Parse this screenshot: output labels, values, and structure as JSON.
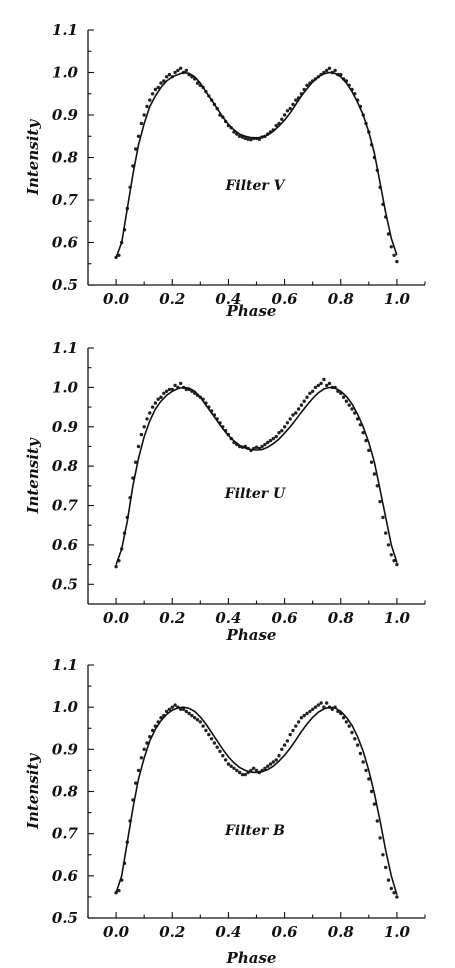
{
  "chart_data": [
    {
      "type": "scatter",
      "title": "",
      "panel_label": "Filter V",
      "xlabel": "Phase",
      "ylabel": "Intensity",
      "xlim": [
        -0.1,
        1.1
      ],
      "ylim": [
        0.5,
        1.1
      ],
      "x_ticks": [
        "0.0",
        "0.2",
        "0.4",
        "0.6",
        "0.8",
        "1.0"
      ],
      "y_ticks": [
        "0.5",
        "0.6",
        "0.7",
        "0.8",
        "0.9",
        "1.0",
        "1.1"
      ],
      "series": [
        {
          "kind": "scatter",
          "x": [
            0.0,
            0.01,
            0.02,
            0.03,
            0.04,
            0.05,
            0.06,
            0.07,
            0.08,
            0.09,
            0.1,
            0.11,
            0.12,
            0.13,
            0.14,
            0.15,
            0.16,
            0.17,
            0.18,
            0.19,
            0.2,
            0.21,
            0.22,
            0.23,
            0.24,
            0.25,
            0.26,
            0.27,
            0.28,
            0.29,
            0.3,
            0.31,
            0.32,
            0.33,
            0.34,
            0.35,
            0.36,
            0.37,
            0.38,
            0.39,
            0.4,
            0.41,
            0.42,
            0.43,
            0.44,
            0.45,
            0.46,
            0.47,
            0.48,
            0.49,
            0.5,
            0.51,
            0.52,
            0.53,
            0.54,
            0.55,
            0.56,
            0.57,
            0.58,
            0.59,
            0.6,
            0.61,
            0.62,
            0.63,
            0.64,
            0.65,
            0.66,
            0.67,
            0.68,
            0.69,
            0.7,
            0.71,
            0.72,
            0.73,
            0.74,
            0.75,
            0.76,
            0.77,
            0.78,
            0.79,
            0.8,
            0.81,
            0.82,
            0.83,
            0.84,
            0.85,
            0.86,
            0.87,
            0.88,
            0.89,
            0.9,
            0.91,
            0.92,
            0.93,
            0.94,
            0.95,
            0.96,
            0.97,
            0.98,
            0.99,
            1.0
          ],
          "y": [
            0.565,
            0.57,
            0.6,
            0.63,
            0.68,
            0.73,
            0.78,
            0.82,
            0.85,
            0.88,
            0.9,
            0.92,
            0.935,
            0.95,
            0.96,
            0.965,
            0.975,
            0.98,
            0.99,
            0.995,
            0.99,
            1.0,
            1.005,
            1.01,
            1.0,
            1.005,
            0.995,
            0.99,
            0.985,
            0.975,
            0.97,
            0.965,
            0.955,
            0.945,
            0.935,
            0.925,
            0.915,
            0.9,
            0.895,
            0.885,
            0.875,
            0.87,
            0.86,
            0.855,
            0.85,
            0.848,
            0.845,
            0.843,
            0.842,
            0.845,
            0.845,
            0.843,
            0.848,
            0.85,
            0.855,
            0.86,
            0.865,
            0.875,
            0.88,
            0.89,
            0.9,
            0.91,
            0.915,
            0.925,
            0.935,
            0.94,
            0.95,
            0.96,
            0.97,
            0.975,
            0.98,
            0.985,
            0.99,
            0.995,
            1.0,
            1.005,
            1.01,
            1.0,
            1.005,
            0.995,
            0.995,
            0.985,
            0.98,
            0.97,
            0.96,
            0.95,
            0.935,
            0.92,
            0.9,
            0.88,
            0.86,
            0.83,
            0.8,
            0.77,
            0.73,
            0.69,
            0.66,
            0.62,
            0.59,
            0.57,
            0.555
          ]
        },
        {
          "kind": "line",
          "x": [
            0.0,
            0.02,
            0.04,
            0.06,
            0.08,
            0.1,
            0.12,
            0.14,
            0.16,
            0.18,
            0.2,
            0.22,
            0.24,
            0.26,
            0.28,
            0.3,
            0.32,
            0.34,
            0.36,
            0.38,
            0.4,
            0.42,
            0.44,
            0.46,
            0.48,
            0.5,
            0.52,
            0.54,
            0.56,
            0.58,
            0.6,
            0.62,
            0.64,
            0.66,
            0.68,
            0.7,
            0.72,
            0.74,
            0.76,
            0.78,
            0.8,
            0.82,
            0.84,
            0.86,
            0.88,
            0.9,
            0.92,
            0.94,
            0.96,
            0.98,
            1.0
          ],
          "y": [
            0.565,
            0.6,
            0.68,
            0.76,
            0.83,
            0.88,
            0.92,
            0.945,
            0.965,
            0.98,
            0.99,
            0.995,
            1.0,
            0.998,
            0.99,
            0.975,
            0.955,
            0.935,
            0.915,
            0.895,
            0.878,
            0.865,
            0.855,
            0.85,
            0.847,
            0.846,
            0.848,
            0.853,
            0.862,
            0.874,
            0.888,
            0.905,
            0.925,
            0.945,
            0.962,
            0.978,
            0.99,
            0.997,
            1.0,
            0.998,
            0.99,
            0.975,
            0.955,
            0.93,
            0.9,
            0.86,
            0.81,
            0.74,
            0.67,
            0.61,
            0.57
          ]
        }
      ]
    },
    {
      "type": "scatter",
      "title": "",
      "panel_label": "Filter U",
      "xlabel": "Phase",
      "ylabel": "Intensity",
      "xlim": [
        -0.1,
        1.1
      ],
      "ylim": [
        0.45,
        1.1
      ],
      "x_ticks": [
        "0.0",
        "0.2",
        "0.4",
        "0.6",
        "0.8",
        "1.0"
      ],
      "y_ticks": [
        "0.5",
        "0.6",
        "0.7",
        "0.8",
        "0.9",
        "1.0",
        "1.1"
      ],
      "series": [
        {
          "kind": "scatter",
          "x": [
            0.0,
            0.01,
            0.02,
            0.03,
            0.04,
            0.05,
            0.06,
            0.07,
            0.08,
            0.09,
            0.1,
            0.11,
            0.12,
            0.13,
            0.14,
            0.15,
            0.16,
            0.17,
            0.18,
            0.19,
            0.2,
            0.21,
            0.22,
            0.23,
            0.24,
            0.25,
            0.26,
            0.27,
            0.28,
            0.29,
            0.3,
            0.31,
            0.32,
            0.33,
            0.34,
            0.35,
            0.36,
            0.37,
            0.38,
            0.39,
            0.4,
            0.41,
            0.42,
            0.43,
            0.44,
            0.45,
            0.46,
            0.47,
            0.48,
            0.49,
            0.5,
            0.51,
            0.52,
            0.53,
            0.54,
            0.55,
            0.56,
            0.57,
            0.58,
            0.59,
            0.6,
            0.61,
            0.62,
            0.63,
            0.64,
            0.65,
            0.66,
            0.67,
            0.68,
            0.69,
            0.7,
            0.71,
            0.72,
            0.73,
            0.74,
            0.75,
            0.76,
            0.77,
            0.78,
            0.79,
            0.8,
            0.81,
            0.82,
            0.83,
            0.84,
            0.85,
            0.86,
            0.87,
            0.88,
            0.89,
            0.9,
            0.91,
            0.92,
            0.93,
            0.94,
            0.95,
            0.96,
            0.97,
            0.98,
            0.99,
            1.0
          ],
          "y": [
            0.545,
            0.56,
            0.59,
            0.63,
            0.67,
            0.72,
            0.77,
            0.81,
            0.85,
            0.88,
            0.9,
            0.92,
            0.935,
            0.95,
            0.96,
            0.97,
            0.975,
            0.985,
            0.99,
            0.995,
            0.995,
            1.005,
            1.0,
            1.01,
            1.0,
            0.995,
            0.995,
            0.99,
            0.985,
            0.98,
            0.975,
            0.97,
            0.96,
            0.95,
            0.94,
            0.93,
            0.92,
            0.91,
            0.9,
            0.89,
            0.88,
            0.87,
            0.86,
            0.855,
            0.85,
            0.848,
            0.85,
            0.845,
            0.84,
            0.845,
            0.848,
            0.845,
            0.85,
            0.855,
            0.86,
            0.865,
            0.87,
            0.875,
            0.885,
            0.89,
            0.9,
            0.91,
            0.92,
            0.93,
            0.935,
            0.945,
            0.955,
            0.965,
            0.975,
            0.985,
            0.99,
            1.0,
            1.005,
            1.01,
            1.02,
            1.005,
            1.01,
            1.0,
            1.0,
            0.99,
            0.985,
            0.975,
            0.965,
            0.955,
            0.945,
            0.935,
            0.92,
            0.905,
            0.885,
            0.865,
            0.84,
            0.81,
            0.78,
            0.75,
            0.71,
            0.67,
            0.63,
            0.6,
            0.575,
            0.56,
            0.55
          ]
        },
        {
          "kind": "line",
          "x": [
            0.0,
            0.02,
            0.04,
            0.06,
            0.08,
            0.1,
            0.12,
            0.14,
            0.16,
            0.18,
            0.2,
            0.22,
            0.24,
            0.26,
            0.28,
            0.3,
            0.32,
            0.34,
            0.36,
            0.38,
            0.4,
            0.42,
            0.44,
            0.46,
            0.48,
            0.5,
            0.52,
            0.54,
            0.56,
            0.58,
            0.6,
            0.62,
            0.64,
            0.66,
            0.68,
            0.7,
            0.72,
            0.74,
            0.76,
            0.78,
            0.8,
            0.82,
            0.84,
            0.86,
            0.88,
            0.9,
            0.92,
            0.94,
            0.96,
            0.98,
            1.0
          ],
          "y": [
            0.55,
            0.59,
            0.66,
            0.75,
            0.82,
            0.875,
            0.915,
            0.945,
            0.965,
            0.98,
            0.99,
            0.997,
            1.0,
            0.998,
            0.99,
            0.975,
            0.955,
            0.935,
            0.915,
            0.895,
            0.878,
            0.864,
            0.853,
            0.846,
            0.842,
            0.841,
            0.842,
            0.848,
            0.857,
            0.869,
            0.884,
            0.9,
            0.918,
            0.937,
            0.955,
            0.972,
            0.986,
            0.996,
            1.0,
            0.998,
            0.99,
            0.977,
            0.958,
            0.932,
            0.9,
            0.86,
            0.81,
            0.74,
            0.67,
            0.6,
            0.555
          ]
        }
      ]
    },
    {
      "type": "scatter",
      "title": "",
      "panel_label": "Filter B",
      "xlabel": "Phase",
      "ylabel": "Intensity",
      "xlim": [
        -0.1,
        1.1
      ],
      "ylim": [
        0.5,
        1.1
      ],
      "x_ticks": [
        "0.0",
        "0.2",
        "0.4",
        "0.6",
        "0.8",
        "1.0"
      ],
      "y_ticks": [
        "0.5",
        "0.6",
        "0.7",
        "0.8",
        "0.9",
        "1.0",
        "1.1"
      ],
      "series": [
        {
          "kind": "scatter",
          "x": [
            0.0,
            0.01,
            0.02,
            0.03,
            0.04,
            0.05,
            0.06,
            0.07,
            0.08,
            0.09,
            0.1,
            0.11,
            0.12,
            0.13,
            0.14,
            0.15,
            0.16,
            0.17,
            0.18,
            0.19,
            0.2,
            0.21,
            0.22,
            0.23,
            0.24,
            0.25,
            0.26,
            0.27,
            0.28,
            0.29,
            0.3,
            0.31,
            0.32,
            0.33,
            0.34,
            0.35,
            0.36,
            0.37,
            0.38,
            0.39,
            0.4,
            0.41,
            0.42,
            0.43,
            0.44,
            0.45,
            0.46,
            0.47,
            0.48,
            0.49,
            0.5,
            0.51,
            0.52,
            0.53,
            0.54,
            0.55,
            0.56,
            0.57,
            0.58,
            0.59,
            0.6,
            0.61,
            0.62,
            0.63,
            0.64,
            0.65,
            0.66,
            0.67,
            0.68,
            0.69,
            0.7,
            0.71,
            0.72,
            0.73,
            0.74,
            0.75,
            0.76,
            0.77,
            0.78,
            0.79,
            0.8,
            0.81,
            0.82,
            0.83,
            0.84,
            0.85,
            0.86,
            0.87,
            0.88,
            0.89,
            0.9,
            0.91,
            0.92,
            0.93,
            0.94,
            0.95,
            0.96,
            0.97,
            0.98,
            0.99,
            1.0
          ],
          "y": [
            0.56,
            0.565,
            0.59,
            0.63,
            0.68,
            0.73,
            0.78,
            0.82,
            0.85,
            0.88,
            0.9,
            0.915,
            0.93,
            0.945,
            0.955,
            0.965,
            0.975,
            0.98,
            0.99,
            0.995,
            1.0,
            1.005,
            1.0,
            0.995,
            0.995,
            0.99,
            0.985,
            0.98,
            0.975,
            0.97,
            0.965,
            0.955,
            0.945,
            0.935,
            0.925,
            0.915,
            0.905,
            0.895,
            0.885,
            0.875,
            0.865,
            0.86,
            0.855,
            0.85,
            0.845,
            0.84,
            0.84,
            0.845,
            0.85,
            0.855,
            0.85,
            0.845,
            0.85,
            0.855,
            0.86,
            0.865,
            0.87,
            0.875,
            0.885,
            0.9,
            0.91,
            0.92,
            0.935,
            0.945,
            0.955,
            0.965,
            0.975,
            0.98,
            0.985,
            0.99,
            0.995,
            1.0,
            1.005,
            1.01,
            1.0,
            1.01,
            1.0,
            0.995,
            1.0,
            0.99,
            0.985,
            0.975,
            0.965,
            0.955,
            0.94,
            0.925,
            0.91,
            0.89,
            0.87,
            0.85,
            0.83,
            0.8,
            0.77,
            0.73,
            0.69,
            0.65,
            0.62,
            0.59,
            0.57,
            0.56,
            0.55
          ]
        },
        {
          "kind": "line",
          "x": [
            0.0,
            0.02,
            0.04,
            0.06,
            0.08,
            0.1,
            0.12,
            0.14,
            0.16,
            0.18,
            0.2,
            0.22,
            0.24,
            0.26,
            0.28,
            0.3,
            0.32,
            0.34,
            0.36,
            0.38,
            0.4,
            0.42,
            0.44,
            0.46,
            0.48,
            0.5,
            0.52,
            0.54,
            0.56,
            0.58,
            0.6,
            0.62,
            0.64,
            0.66,
            0.68,
            0.7,
            0.72,
            0.74,
            0.76,
            0.78,
            0.8,
            0.82,
            0.84,
            0.86,
            0.88,
            0.9,
            0.92,
            0.94,
            0.96,
            0.98,
            1.0
          ],
          "y": [
            0.56,
            0.6,
            0.68,
            0.76,
            0.83,
            0.88,
            0.92,
            0.948,
            0.968,
            0.983,
            0.993,
            0.998,
            1.0,
            0.997,
            0.99,
            0.977,
            0.96,
            0.94,
            0.92,
            0.9,
            0.882,
            0.868,
            0.857,
            0.85,
            0.846,
            0.845,
            0.847,
            0.852,
            0.86,
            0.872,
            0.886,
            0.903,
            0.922,
            0.942,
            0.96,
            0.976,
            0.988,
            0.996,
            1.0,
            0.998,
            0.99,
            0.976,
            0.957,
            0.93,
            0.895,
            0.85,
            0.795,
            0.73,
            0.66,
            0.6,
            0.555
          ]
        }
      ]
    }
  ]
}
